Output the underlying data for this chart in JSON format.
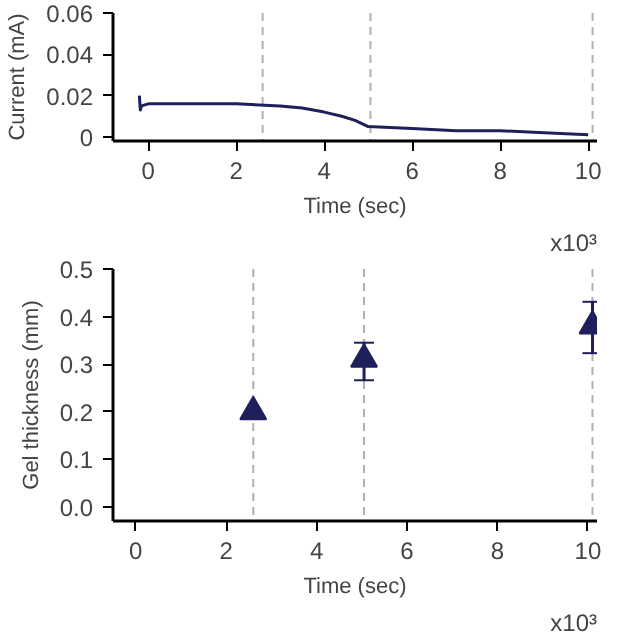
{
  "chart_data": [
    {
      "type": "line",
      "xlabel": "Time (sec)",
      "ylabel": "Current (mA)",
      "series": [
        {
          "color": "#1f1f5c",
          "x": [
            -0.2,
            -0.18,
            -0.15,
            0,
            0.5,
            1,
            2,
            3,
            3.5,
            4,
            4.4,
            4.7,
            5,
            6,
            7,
            8,
            9,
            10
          ],
          "values": [
            0.02,
            0.013,
            0.015,
            0.016,
            0.016,
            0.016,
            0.016,
            0.015,
            0.014,
            0.012,
            0.01,
            0.008,
            0.005,
            0.004,
            0.003,
            0.003,
            0.002,
            0.001
          ]
        }
      ],
      "xlim": [
        -0.8,
        10.2
      ],
      "ylim": [
        -0.002,
        0.06
      ],
      "xticks": [
        0,
        2,
        4,
        6,
        8,
        10
      ],
      "annotations": [
        "x10³"
      ],
      "yticks": [
        0,
        0.02,
        0.04,
        0.06
      ],
      "ref_lines": [
        {
          "axis": "x",
          "value": 2.6,
          "color": "#b0b0b0",
          "line_style": "dashed"
        },
        {
          "axis": "x",
          "value": 5.05,
          "color": "#b0b0b0",
          "line_style": "dashed"
        },
        {
          "axis": "x",
          "value": 10.1,
          "color": "#b0b0b0",
          "line_style": "dashed"
        }
      ],
      "marker": "none",
      "line_style": "solid"
    },
    {
      "type": "scatter",
      "xlabel": "Time (sec)",
      "ylabel": "Gel thickness (mm)",
      "series": [
        {
          "color": "#1f1f5c",
          "x": [
            2.6,
            5.05,
            10.1
          ],
          "values": [
            0.2,
            0.31,
            0.38
          ],
          "errors": [
            null,
            [
              0.266,
              0.345
            ],
            [
              0.323,
              0.431
            ]
          ]
        }
      ],
      "xlim": [
        -0.5,
        10.2
      ],
      "ylim": [
        -0.03,
        0.5
      ],
      "xticks": [
        0,
        2,
        4,
        6,
        8,
        10
      ],
      "annotations": [
        "x10³"
      ],
      "yticks": [
        {
          "value": 0,
          "label": "0.0"
        },
        0.1,
        0.2,
        0.3,
        0.4,
        0.5
      ],
      "ref_lines": [
        {
          "axis": "x",
          "value": 2.6,
          "color": "#b0b0b0",
          "line_style": "dashed"
        },
        {
          "axis": "x",
          "value": 5.05,
          "color": "#b0b0b0",
          "line_style": "dashed"
        },
        {
          "axis": "x",
          "value": 10.1,
          "color": "#b0b0b0",
          "line_style": "dashed"
        }
      ],
      "marker": "triangle"
    }
  ]
}
